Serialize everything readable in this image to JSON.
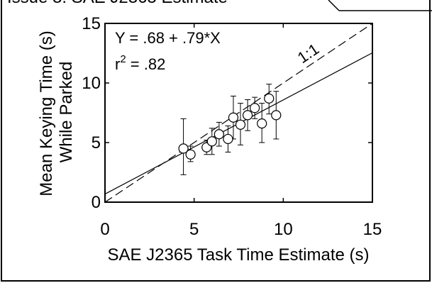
{
  "page_title": "Issue 3: SAE J2365 Estimate",
  "chart_data": {
    "type": "scatter",
    "title": "",
    "xlabel": "SAE J2365 Task Time Estimate (s)",
    "ylabel_line1": "Mean Keying Time (s)",
    "ylabel_line2": "While Parked",
    "xlim": [
      0,
      15
    ],
    "ylim": [
      0,
      15
    ],
    "xticks": [
      0,
      5,
      10,
      15
    ],
    "yticks": [
      0,
      5,
      10,
      15
    ],
    "xtick_labels": [
      "0",
      "5",
      "10",
      "15"
    ],
    "ytick_labels": [
      "0",
      "5",
      "10",
      "15"
    ],
    "equation": "Y = .68 + .79*X",
    "r2_label": "r",
    "r2_superscript": "2",
    "r2_value": " = .82",
    "identity_label": "1:1",
    "regression": {
      "intercept": 0.68,
      "slope": 0.79
    },
    "points": [
      {
        "x": 4.4,
        "y": 4.5,
        "err_low": 2.3,
        "err_high": 7.0
      },
      {
        "x": 4.8,
        "y": 4.0,
        "err_low": 3.4,
        "err_high": 4.7
      },
      {
        "x": 5.7,
        "y": 4.6,
        "err_low": 4.0,
        "err_high": 5.2
      },
      {
        "x": 6.0,
        "y": 5.1,
        "err_low": 4.0,
        "err_high": 6.2
      },
      {
        "x": 6.4,
        "y": 5.7,
        "err_low": 4.7,
        "err_high": 6.7
      },
      {
        "x": 6.9,
        "y": 5.3,
        "err_low": 4.2,
        "err_high": 6.4
      },
      {
        "x": 7.2,
        "y": 7.1,
        "err_low": 5.3,
        "err_high": 8.9
      },
      {
        "x": 7.6,
        "y": 6.5,
        "err_low": 4.8,
        "err_high": 8.3
      },
      {
        "x": 8.0,
        "y": 7.3,
        "err_low": 6.0,
        "err_high": 8.6
      },
      {
        "x": 8.4,
        "y": 7.9,
        "err_low": 7.0,
        "err_high": 8.8
      },
      {
        "x": 8.8,
        "y": 6.6,
        "err_low": 5.0,
        "err_high": 8.3
      },
      {
        "x": 9.2,
        "y": 8.7,
        "err_low": 7.4,
        "err_high": 9.9
      },
      {
        "x": 9.6,
        "y": 7.3,
        "err_low": 5.3,
        "err_high": 9.3
      }
    ],
    "grid": false,
    "legend": "none"
  }
}
